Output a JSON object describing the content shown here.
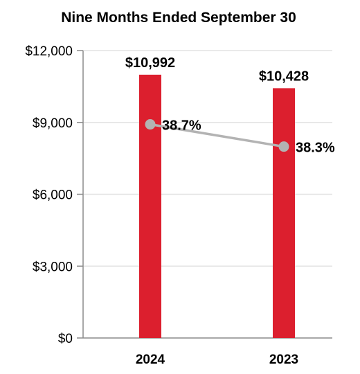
{
  "chart_data": {
    "type": "bar",
    "title": "Nine Months Ended September 30",
    "categories": [
      "2024",
      "2023"
    ],
    "values": [
      10992,
      10428
    ],
    "value_labels": [
      "$10,992",
      "$10,428"
    ],
    "ylim": [
      0,
      12000
    ],
    "yticks": [
      0,
      3000,
      6000,
      9000,
      12000
    ],
    "ytick_labels": [
      "$0",
      "$3,000",
      "$6,000",
      "$9,000",
      "$12,000"
    ],
    "bar_color": "#dc1f2e",
    "grid": true,
    "line_series": {
      "values_on_primary_axis": [
        8920,
        7990
      ],
      "labels": [
        "38.7%",
        "38.3%"
      ],
      "color": "#b3b3b3"
    }
  }
}
